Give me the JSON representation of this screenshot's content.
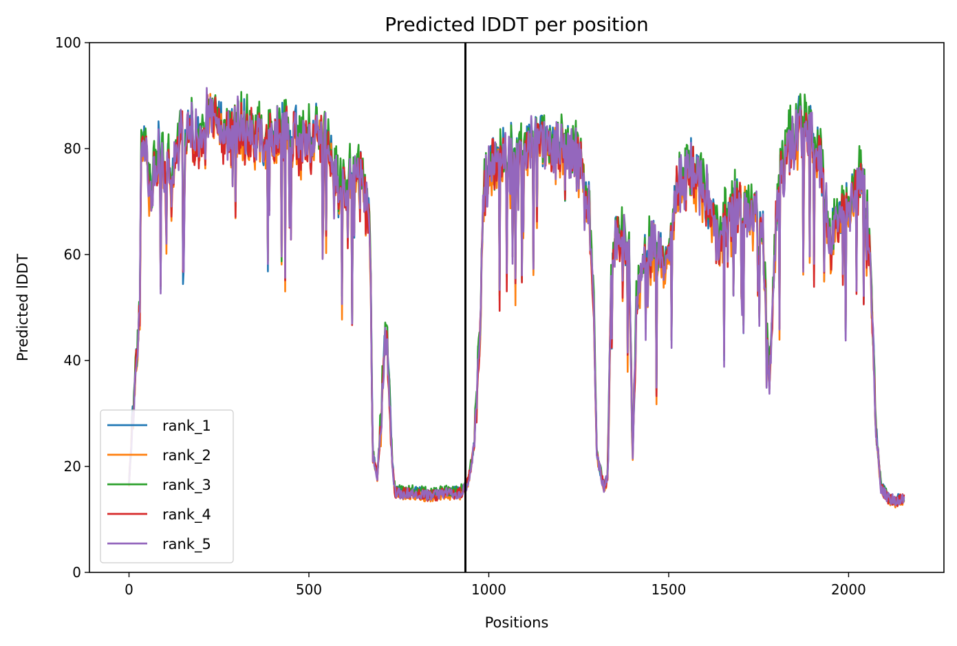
{
  "chart_data": {
    "type": "line",
    "title": "Predicted lDDT per position",
    "xlabel": "Positions",
    "ylabel": "Predicted lDDT",
    "xlim": [
      -110,
      2265
    ],
    "ylim": [
      0,
      100
    ],
    "xticks": [
      0,
      500,
      1000,
      1500,
      2000
    ],
    "yticks": [
      0,
      20,
      40,
      60,
      80,
      100
    ],
    "xtick_labels": [
      "0",
      "500",
      "1000",
      "1500",
      "2000"
    ],
    "ytick_labels": [
      "0",
      "20",
      "40",
      "60",
      "80",
      "100"
    ],
    "grid": false,
    "legend_position": "lower-left",
    "vline": {
      "x": 935,
      "color": "#000000"
    },
    "base_profile": [
      [
        0,
        17
      ],
      [
        10,
        28
      ],
      [
        20,
        38
      ],
      [
        30,
        50
      ],
      [
        35,
        84
      ],
      [
        45,
        78
      ],
      [
        60,
        70
      ],
      [
        80,
        80
      ],
      [
        100,
        74
      ],
      [
        130,
        80
      ],
      [
        160,
        84
      ],
      [
        190,
        82
      ],
      [
        220,
        86
      ],
      [
        250,
        84
      ],
      [
        280,
        83
      ],
      [
        310,
        84
      ],
      [
        340,
        82
      ],
      [
        370,
        81
      ],
      [
        400,
        83
      ],
      [
        430,
        84
      ],
      [
        460,
        82
      ],
      [
        490,
        80
      ],
      [
        520,
        82
      ],
      [
        550,
        83
      ],
      [
        570,
        76
      ],
      [
        580,
        72
      ],
      [
        600,
        74
      ],
      [
        620,
        73
      ],
      [
        650,
        75
      ],
      [
        670,
        62
      ],
      [
        678,
        22
      ],
      [
        690,
        18
      ],
      [
        700,
        28
      ],
      [
        712,
        46
      ],
      [
        722,
        38
      ],
      [
        732,
        20
      ],
      [
        740,
        15
      ],
      [
        760,
        15
      ],
      [
        800,
        15
      ],
      [
        840,
        14.5
      ],
      [
        880,
        15
      ],
      [
        920,
        15
      ],
      [
        935,
        16
      ],
      [
        945,
        18
      ],
      [
        960,
        24
      ],
      [
        975,
        45
      ],
      [
        985,
        72
      ],
      [
        1000,
        76
      ],
      [
        1050,
        78
      ],
      [
        1100,
        80
      ],
      [
        1150,
        81
      ],
      [
        1200,
        80
      ],
      [
        1250,
        78
      ],
      [
        1275,
        70
      ],
      [
        1290,
        55
      ],
      [
        1300,
        22
      ],
      [
        1320,
        16
      ],
      [
        1330,
        18
      ],
      [
        1340,
        55
      ],
      [
        1360,
        64
      ],
      [
        1390,
        60
      ],
      [
        1400,
        22
      ],
      [
        1410,
        50
      ],
      [
        1440,
        62
      ],
      [
        1470,
        60
      ],
      [
        1500,
        58
      ],
      [
        1520,
        72
      ],
      [
        1560,
        76
      ],
      [
        1600,
        72
      ],
      [
        1640,
        62
      ],
      [
        1680,
        70
      ],
      [
        1720,
        68
      ],
      [
        1760,
        66
      ],
      [
        1780,
        35
      ],
      [
        1800,
        70
      ],
      [
        1840,
        82
      ],
      [
        1880,
        84
      ],
      [
        1920,
        78
      ],
      [
        1950,
        62
      ],
      [
        2000,
        70
      ],
      [
        2040,
        76
      ],
      [
        2060,
        58
      ],
      [
        2075,
        28
      ],
      [
        2090,
        16
      ],
      [
        2110,
        14
      ],
      [
        2130,
        13.5
      ],
      [
        2155,
        14
      ]
    ],
    "series": [
      {
        "name": "rank_1",
        "color": "#1f77b4",
        "seed": 11,
        "offset": 0.6
      },
      {
        "name": "rank_2",
        "color": "#ff7f0e",
        "seed": 23,
        "offset": -0.8
      },
      {
        "name": "rank_3",
        "color": "#2ca02c",
        "seed": 37,
        "offset": 1.4
      },
      {
        "name": "rank_4",
        "color": "#d62728",
        "seed": 51,
        "offset": -0.3
      },
      {
        "name": "rank_5",
        "color": "#9467bd",
        "seed": 67,
        "offset": 0.0
      }
    ]
  }
}
